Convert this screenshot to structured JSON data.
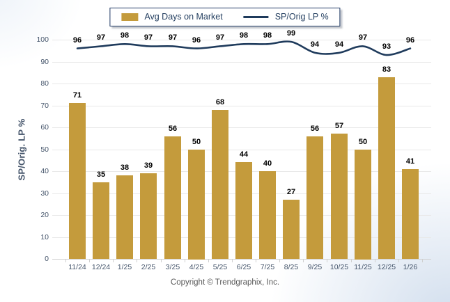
{
  "legend": {
    "bar_label": "Avg Days on Market",
    "line_label": "SP/Orig LP %"
  },
  "footer": {
    "copyright": "Copyright © Trendgraphix, Inc."
  },
  "colors": {
    "bar": "#C49B3C",
    "line": "#1F3B5C",
    "data_label": "#000000",
    "axis_text": "#44546A",
    "grid": "#E8E8E8",
    "axis_line": "#CFCFCF",
    "legend_border": "#1F3864",
    "legend_text": "#243F60",
    "footer_text": "#595959"
  },
  "chart_data": {
    "type": "bar",
    "subtype": "bar+line combo",
    "categories": [
      "11/24",
      "12/24",
      "1/25",
      "2/25",
      "3/25",
      "4/25",
      "5/25",
      "6/25",
      "7/25",
      "8/25",
      "9/25",
      "10/25",
      "11/25",
      "12/25",
      "1/26"
    ],
    "series": [
      {
        "name": "Avg Days on Market",
        "type": "bar",
        "color": "#C49B3C",
        "values": [
          71,
          35,
          38,
          39,
          56,
          50,
          68,
          44,
          40,
          27,
          56,
          57,
          50,
          83,
          41
        ]
      },
      {
        "name": "SP/Orig LP %",
        "type": "line",
        "color": "#1F3B5C",
        "smooth": true,
        "values": [
          96,
          97,
          98,
          97,
          97,
          96,
          97,
          98,
          98,
          99,
          94,
          94,
          97,
          93,
          96
        ]
      }
    ],
    "title": "",
    "xlabel": "",
    "ylabel": "SP/Orig. LP %",
    "ylim": [
      0,
      100
    ],
    "yticks": [
      0,
      10,
      20,
      30,
      40,
      50,
      60,
      70,
      80,
      90,
      100
    ],
    "grid": true,
    "legend_position": "top-center",
    "value_labels": "above points and bars"
  }
}
